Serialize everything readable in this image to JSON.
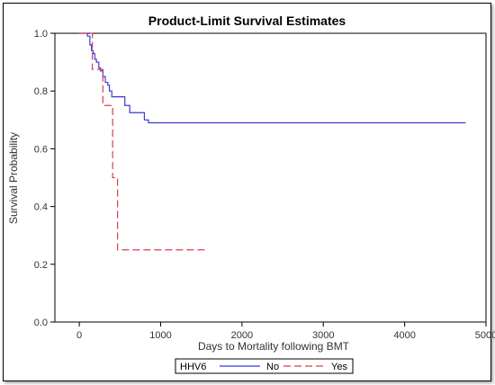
{
  "chart_data": {
    "type": "line",
    "title": "Product-Limit Survival Estimates",
    "xlabel": "Days to Mortality following BMT",
    "ylabel": "Survival Probability",
    "xlim": [
      -300,
      5000
    ],
    "ylim": [
      0.0,
      1.0
    ],
    "xticks": [
      0,
      1000,
      2000,
      3000,
      4000,
      5000
    ],
    "yticks": [
      0.0,
      0.2,
      0.4,
      0.6,
      0.8,
      1.0
    ],
    "xtick_labels": [
      "0",
      "1000",
      "2000",
      "3000",
      "4000",
      "5000"
    ],
    "ytick_labels": [
      "0.0",
      "0.2",
      "0.4",
      "0.6",
      "0.8",
      "1.0"
    ],
    "grid": false,
    "legend": {
      "position": "bottom",
      "title": "HHV6"
    },
    "series": [
      {
        "name": "No",
        "style": "step-solid",
        "color": "#3b3bd6",
        "x": [
          0,
          100,
          130,
          150,
          170,
          190,
          210,
          240,
          260,
          290,
          320,
          350,
          370,
          400,
          430,
          560,
          620,
          800,
          850,
          4750
        ],
        "y": [
          1.0,
          0.99,
          0.96,
          0.94,
          0.93,
          0.91,
          0.9,
          0.88,
          0.87,
          0.85,
          0.83,
          0.82,
          0.8,
          0.78,
          0.78,
          0.75,
          0.725,
          0.7,
          0.69,
          0.69
        ]
      },
      {
        "name": "Yes",
        "style": "step-dashed",
        "color": "#d8404a",
        "x": [
          0,
          160,
          290,
          410,
          470,
          1570
        ],
        "y": [
          1.0,
          0.875,
          0.75,
          0.5,
          0.25,
          0.25
        ]
      }
    ]
  }
}
